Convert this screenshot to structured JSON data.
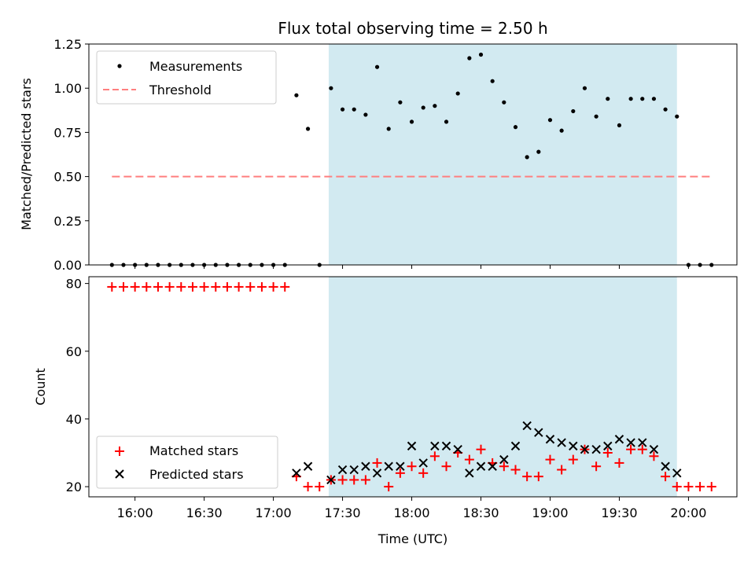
{
  "chart_data": [
    {
      "type": "scatter",
      "title": "Flux total observing time = 2.50 h",
      "xlabel": "",
      "ylabel": "Matched/Predicted stars",
      "ylim": [
        0,
        1.25
      ],
      "yticks": [
        "0.00",
        "0.25",
        "0.50",
        "0.75",
        "1.00",
        "1.25"
      ],
      "xlim": [
        "15:40",
        "20:21"
      ],
      "shaded_region": {
        "start": "17:24",
        "end": "19:55",
        "color": "#add8e6"
      },
      "legend": {
        "position": "upper-left",
        "entries": [
          "Measurements",
          "Threshold"
        ]
      },
      "series": [
        {
          "name": "Measurements",
          "marker": "dot",
          "color": "#000000",
          "x": [
            "15:50",
            "15:55",
            "16:00",
            "16:05",
            "16:10",
            "16:15",
            "16:20",
            "16:25",
            "16:30",
            "16:35",
            "16:40",
            "16:45",
            "16:50",
            "16:55",
            "17:00",
            "17:05",
            "17:10",
            "17:15",
            "17:20",
            "17:25",
            "17:30",
            "17:35",
            "17:40",
            "17:45",
            "17:50",
            "17:55",
            "18:00",
            "18:05",
            "18:10",
            "18:15",
            "18:20",
            "18:25",
            "18:30",
            "18:35",
            "18:40",
            "18:45",
            "18:50",
            "18:55",
            "19:00",
            "19:05",
            "19:10",
            "19:15",
            "19:20",
            "19:25",
            "19:30",
            "19:35",
            "19:40",
            "19:45",
            "19:50",
            "19:55",
            "20:00",
            "20:05",
            "20:10"
          ],
          "y": [
            0,
            0,
            0,
            0,
            0,
            0,
            0,
            0,
            0,
            0,
            0,
            0,
            0,
            0,
            0,
            0,
            0.96,
            0.77,
            0,
            1.0,
            0.88,
            0.88,
            0.85,
            1.12,
            0.77,
            0.92,
            0.81,
            0.89,
            0.9,
            0.81,
            0.97,
            1.17,
            1.19,
            1.04,
            0.92,
            0.78,
            0.61,
            0.64,
            0.82,
            0.76,
            0.87,
            1.0,
            0.84,
            0.94,
            0.79,
            0.94,
            0.94,
            0.94,
            0.88,
            0.84,
            0,
            0,
            0
          ]
        },
        {
          "name": "Threshold",
          "style": "dashed",
          "color": "#ff7f7f",
          "x": [
            "15:50",
            "20:10"
          ],
          "y": [
            0.5,
            0.5
          ]
        }
      ]
    },
    {
      "type": "scatter",
      "title": "",
      "xlabel": "Time (UTC)",
      "ylabel": "Count",
      "ylim": [
        17,
        82
      ],
      "yticks": [
        "20",
        "40",
        "60",
        "80"
      ],
      "xticks": [
        "16:00",
        "16:30",
        "17:00",
        "17:30",
        "18:00",
        "18:30",
        "19:00",
        "19:30",
        "20:00"
      ],
      "xlim": [
        "15:40",
        "20:21"
      ],
      "shaded_region": {
        "start": "17:24",
        "end": "19:55",
        "color": "#add8e6"
      },
      "legend": {
        "position": "lower-left",
        "entries": [
          "Matched stars",
          "Predicted stars"
        ]
      },
      "series": [
        {
          "name": "Matched stars",
          "marker": "plus",
          "color": "#ff0000",
          "x": [
            "15:50",
            "15:55",
            "16:00",
            "16:05",
            "16:10",
            "16:15",
            "16:20",
            "16:25",
            "16:30",
            "16:35",
            "16:40",
            "16:45",
            "16:50",
            "16:55",
            "17:00",
            "17:05",
            "17:10",
            "17:15",
            "17:20",
            "17:25",
            "17:30",
            "17:35",
            "17:40",
            "17:45",
            "17:50",
            "17:55",
            "18:00",
            "18:05",
            "18:10",
            "18:15",
            "18:20",
            "18:25",
            "18:30",
            "18:35",
            "18:40",
            "18:45",
            "18:50",
            "18:55",
            "19:00",
            "19:05",
            "19:10",
            "19:15",
            "19:20",
            "19:25",
            "19:30",
            "19:35",
            "19:40",
            "19:45",
            "19:50",
            "19:55",
            "20:00",
            "20:05",
            "20:10"
          ],
          "y": [
            79,
            79,
            79,
            79,
            79,
            79,
            79,
            79,
            79,
            79,
            79,
            79,
            79,
            79,
            79,
            79,
            23,
            20,
            20,
            22,
            22,
            22,
            22,
            27,
            20,
            24,
            26,
            24,
            29,
            26,
            30,
            28,
            31,
            27,
            26,
            25,
            23,
            23,
            28,
            25,
            28,
            31,
            26,
            30,
            27,
            31,
            31,
            29,
            23,
            20,
            20,
            20,
            20
          ]
        },
        {
          "name": "Predicted stars",
          "marker": "x",
          "color": "#000000",
          "x": [
            "17:10",
            "17:15",
            "17:25",
            "17:30",
            "17:35",
            "17:40",
            "17:45",
            "17:50",
            "17:55",
            "18:00",
            "18:05",
            "18:10",
            "18:15",
            "18:20",
            "18:25",
            "18:30",
            "18:35",
            "18:40",
            "18:45",
            "18:50",
            "18:55",
            "19:00",
            "19:05",
            "19:10",
            "19:15",
            "19:20",
            "19:25",
            "19:30",
            "19:35",
            "19:40",
            "19:45",
            "19:50",
            "19:55"
          ],
          "y": [
            24,
            26,
            22,
            25,
            25,
            26,
            24,
            26,
            26,
            32,
            27,
            32,
            32,
            31,
            24,
            26,
            26,
            28,
            32,
            38,
            36,
            34,
            33,
            32,
            31,
            31,
            32,
            34,
            33,
            33,
            31,
            26,
            24
          ]
        }
      ]
    }
  ]
}
